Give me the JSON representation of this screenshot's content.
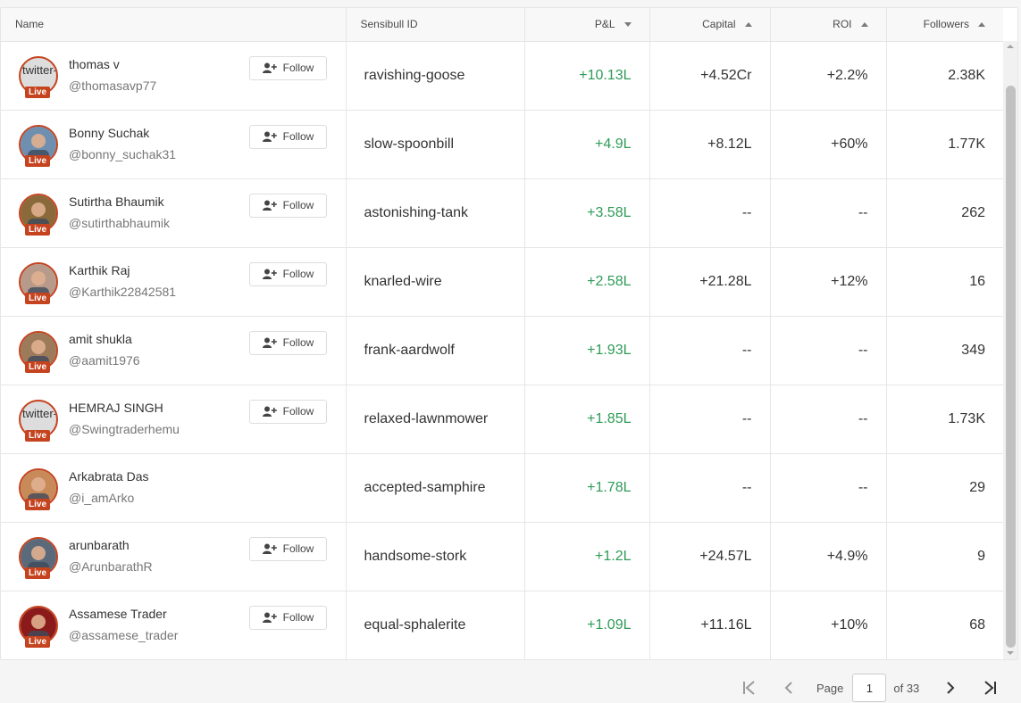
{
  "columns": {
    "name": "Name",
    "sensibull_id": "Sensibull ID",
    "pl": "P&L",
    "capital": "Capital",
    "roi": "ROI",
    "followers": "Followers"
  },
  "sort_indicators": {
    "pl": "descending",
    "capital": "ascending",
    "roi": "ascending",
    "followers": "ascending"
  },
  "live_label": "Live",
  "follow_label": "Follow",
  "broken_image_alt": "twitter-",
  "colors": {
    "positive": "#2e9b57",
    "live_badge": "#c5431f"
  },
  "rows": [
    {
      "name": "thomas v",
      "handle": "@thomasavp77",
      "id": "ravishing-goose",
      "pl": "+10.13L",
      "capital": "+4.52Cr",
      "roi": "+2.2%",
      "followers": "2.38K",
      "follow": true,
      "avatar": "broken"
    },
    {
      "name": "Bonny Suchak",
      "handle": "@bonny_suchak31",
      "id": "slow-spoonbill",
      "pl": "+4.9L",
      "capital": "+8.12L",
      "roi": "+60%",
      "followers": "1.77K",
      "follow": true,
      "avatar": "photo"
    },
    {
      "name": "Sutirtha Bhaumik",
      "handle": "@sutirthabhaumik",
      "id": "astonishing-tank",
      "pl": "+3.58L",
      "capital": "--",
      "roi": "--",
      "followers": "262",
      "follow": true,
      "avatar": "photo"
    },
    {
      "name": "Karthik Raj",
      "handle": "@Karthik22842581",
      "id": "knarled-wire",
      "pl": "+2.58L",
      "capital": "+21.28L",
      "roi": "+12%",
      "followers": "16",
      "follow": true,
      "avatar": "photo"
    },
    {
      "name": "amit shukla",
      "handle": "@aamit1976",
      "id": "frank-aardwolf",
      "pl": "+1.93L",
      "capital": "--",
      "roi": "--",
      "followers": "349",
      "follow": true,
      "avatar": "photo"
    },
    {
      "name": "HEMRAJ SINGH",
      "handle": "@Swingtraderhemu",
      "id": "relaxed-lawnmower",
      "pl": "+1.85L",
      "capital": "--",
      "roi": "--",
      "followers": "1.73K",
      "follow": true,
      "avatar": "broken"
    },
    {
      "name": "Arkabrata Das",
      "handle": "@i_amArko",
      "id": "accepted-samphire",
      "pl": "+1.78L",
      "capital": "--",
      "roi": "--",
      "followers": "29",
      "follow": false,
      "avatar": "photo"
    },
    {
      "name": "arunbarath",
      "handle": "@ArunbarathR",
      "id": "handsome-stork",
      "pl": "+1.2L",
      "capital": "+24.57L",
      "roi": "+4.9%",
      "followers": "9",
      "follow": true,
      "avatar": "photo"
    },
    {
      "name": "Assamese Trader",
      "handle": "@assamese_trader",
      "id": "equal-sphalerite",
      "pl": "+1.09L",
      "capital": "+11.16L",
      "roi": "+10%",
      "followers": "68",
      "follow": true,
      "avatar": "logo"
    }
  ],
  "pagination": {
    "page_label": "Page",
    "current_page": "1",
    "of_label": "of 33"
  }
}
